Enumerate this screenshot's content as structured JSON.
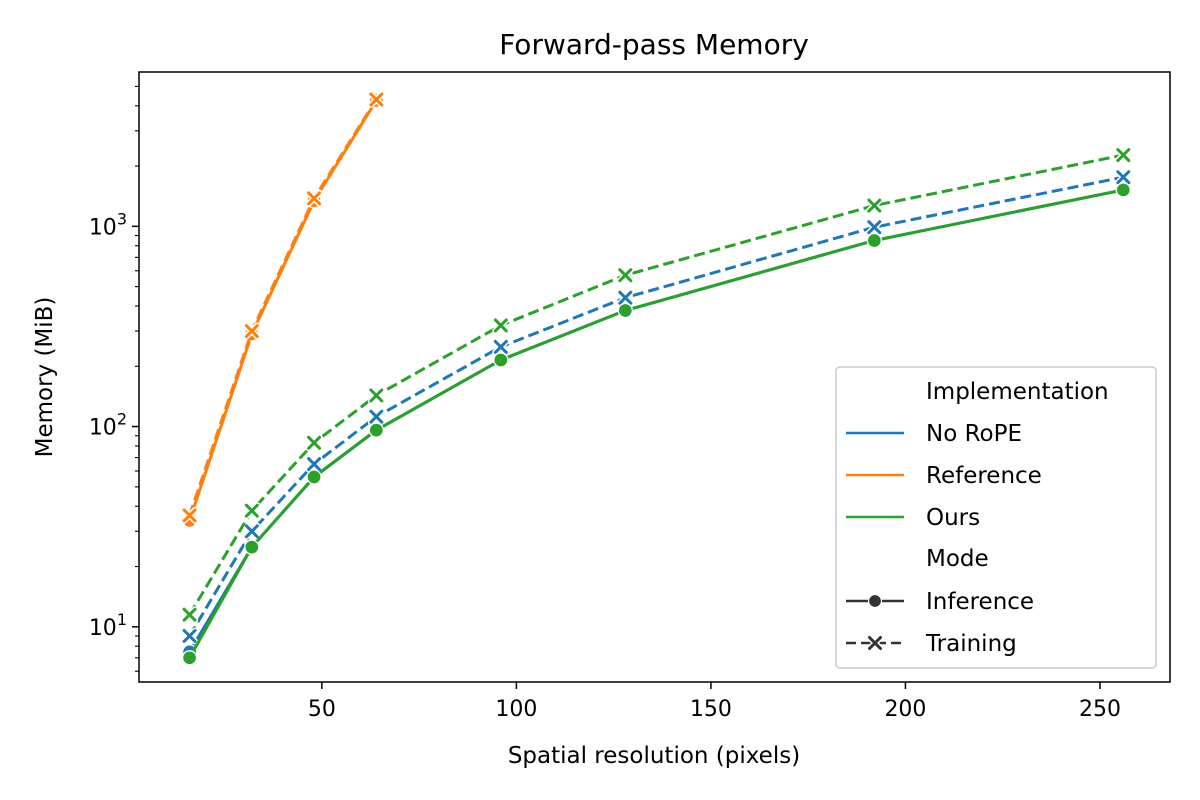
{
  "chart_data": {
    "type": "line",
    "title": "Forward-pass Memory",
    "xlabel": "Spatial resolution (pixels)",
    "ylabel": "Memory (MiB)",
    "xscale": "linear",
    "yscale": "log",
    "xlim": [
      3,
      268
    ],
    "ylim": [
      5.3,
      5900
    ],
    "xticks": [
      50,
      100,
      150,
      200,
      250
    ],
    "yticks": [
      {
        "value": 10,
        "base": "10",
        "exp": "1"
      },
      {
        "value": 100,
        "base": "10",
        "exp": "2"
      },
      {
        "value": 1000,
        "base": "10",
        "exp": "3"
      }
    ],
    "legend": {
      "position": "lower-right",
      "implementation_title": "Implementation",
      "mode_title": "Mode",
      "implementations": [
        {
          "label": "No RoPE",
          "color": "#1f77b4"
        },
        {
          "label": "Reference",
          "color": "#ff7f0e"
        },
        {
          "label": "Ours",
          "color": "#2ca02c"
        }
      ],
      "modes": [
        {
          "label": "Inference",
          "marker": "circle",
          "dash": "solid"
        },
        {
          "label": "Training",
          "marker": "x",
          "dash": "dashed"
        }
      ]
    },
    "series": [
      {
        "implementation": "No RoPE",
        "mode": "Inference",
        "color": "#1f77b4",
        "marker": "circle",
        "dash": "solid",
        "x": [
          16,
          32,
          48,
          64,
          96,
          128,
          192,
          256
        ],
        "y": [
          7.5,
          25,
          56,
          96,
          215,
          380,
          850,
          1520
        ]
      },
      {
        "implementation": "No RoPE",
        "mode": "Training",
        "color": "#1f77b4",
        "marker": "x",
        "dash": "dashed",
        "x": [
          16,
          32,
          48,
          64,
          96,
          128,
          192,
          256
        ],
        "y": [
          9,
          30,
          65,
          112,
          250,
          440,
          990,
          1760
        ]
      },
      {
        "implementation": "Reference",
        "mode": "Inference",
        "color": "#ff7f0e",
        "marker": "circle",
        "dash": "solid",
        "x": [
          16,
          32,
          48,
          64
        ],
        "y": [
          34,
          290,
          1340,
          4250
        ]
      },
      {
        "implementation": "Reference",
        "mode": "Training",
        "color": "#ff7f0e",
        "marker": "x",
        "dash": "dashed",
        "x": [
          16,
          32,
          48,
          64
        ],
        "y": [
          36,
          300,
          1380,
          4300
        ]
      },
      {
        "implementation": "Ours",
        "mode": "Inference",
        "color": "#2ca02c",
        "marker": "circle",
        "dash": "solid",
        "x": [
          16,
          32,
          48,
          64,
          96,
          128,
          192,
          256
        ],
        "y": [
          7,
          25,
          56,
          96,
          215,
          380,
          850,
          1520
        ]
      },
      {
        "implementation": "Ours",
        "mode": "Training",
        "color": "#2ca02c",
        "marker": "x",
        "dash": "dashed",
        "x": [
          16,
          32,
          48,
          64,
          96,
          128,
          192,
          256
        ],
        "y": [
          11.5,
          38,
          83,
          143,
          320,
          570,
          1270,
          2270
        ]
      }
    ]
  }
}
